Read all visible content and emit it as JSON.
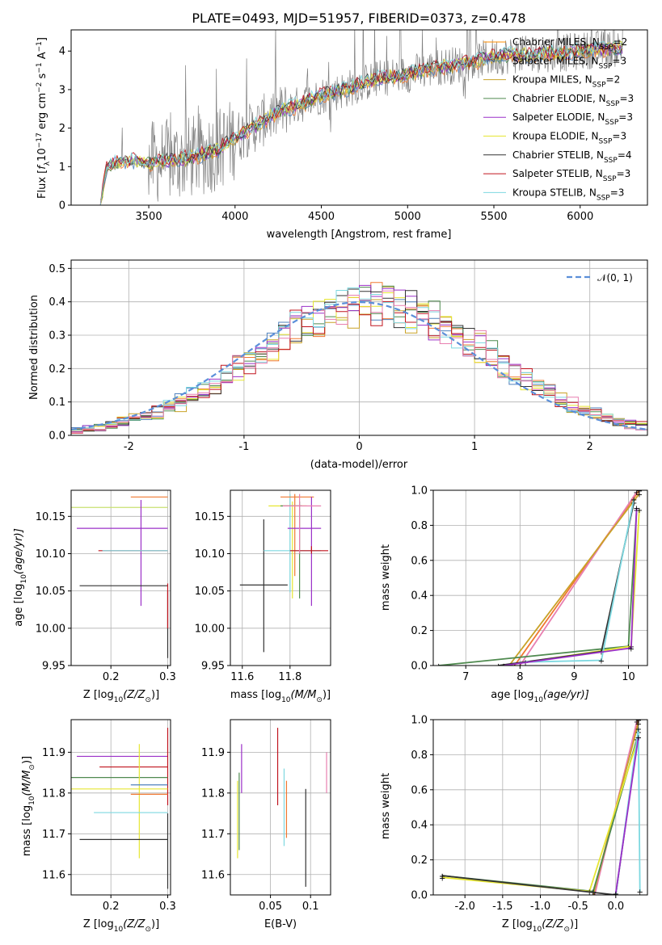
{
  "figure_title": "PLATE=0493, MJD=51957, FIBERID=0373, z=0.478",
  "models": [
    {
      "name": "Chabrier MILES, N",
      "sub": "SSP",
      "suffix": "=2",
      "color": "#ff8c00"
    },
    {
      "name": "Salpeter MILES, N",
      "sub": "SSP",
      "suffix": "=3",
      "color": "#4f81bd"
    },
    {
      "name": "Kroupa MILES, N",
      "sub": "SSP",
      "suffix": "=2",
      "color": "#c9a227"
    },
    {
      "name": "Chabrier ELODIE, N",
      "sub": "SSP",
      "suffix": "=3",
      "color": "#4f8a4f"
    },
    {
      "name": "Salpeter ELODIE, N",
      "sub": "SSP",
      "suffix": "=3",
      "color": "#9b30c8"
    },
    {
      "name": "Kroupa ELODIE, N",
      "sub": "SSP",
      "suffix": "=3",
      "color": "#e6e633"
    },
    {
      "name": "Chabrier STELIB, N",
      "sub": "SSP",
      "suffix": "=4",
      "color": "#333333"
    },
    {
      "name": "Salpeter STELIB, N",
      "sub": "SSP",
      "suffix": "=3",
      "color": "#c0141e"
    },
    {
      "name": "Kroupa STELIB, N",
      "sub": "SSP",
      "suffix": "=3",
      "color": "#7dd8e0"
    }
  ],
  "colors": {
    "data_spectrum": "#808080",
    "gauss": "#5b8fd9",
    "pink": "#e87fb0",
    "coral": "#f07830",
    "lime": "#c8e070"
  },
  "chart_data": [
    {
      "id": "spectrum",
      "type": "line",
      "title": "PLATE=0493, MJD=51957, FIBERID=0373, z=0.478",
      "xlabel": "wavelength [Angstrom, rest frame]",
      "ylabel_parts": [
        "Flux [",
        "f",
        "λ",
        "10",
        "−17",
        " erg cm",
        "−2",
        " s",
        "−1",
        " A",
        "−1",
        "]"
      ],
      "xlim": [
        3050,
        6390
      ],
      "ylim": [
        0,
        4.55
      ],
      "xticks": [
        3500,
        4000,
        4500,
        5000,
        5500,
        6000
      ],
      "yticks": [
        0,
        1,
        2,
        3,
        4
      ],
      "grid": false,
      "legend_position": "top-right",
      "continuum": {
        "x": [
          3220,
          3250,
          3300,
          3400,
          3500,
          3600,
          3700,
          3800,
          3900,
          4000,
          4100,
          4200,
          4300,
          4400,
          4500,
          4600,
          4700,
          4800,
          4900,
          5000,
          5100,
          5200,
          5300,
          5400,
          5500,
          5600,
          5700,
          5800,
          5900,
          6000,
          6100,
          6200,
          6250
        ],
        "y": [
          0.0,
          0.95,
          1.1,
          1.15,
          1.1,
          1.15,
          1.2,
          1.3,
          1.45,
          1.75,
          2.0,
          2.3,
          2.5,
          2.65,
          2.85,
          2.95,
          3.1,
          3.25,
          3.35,
          3.4,
          3.5,
          3.6,
          3.65,
          3.75,
          3.85,
          3.9,
          3.9,
          3.95,
          3.95,
          4.0,
          4.05,
          4.05,
          4.1
        ]
      }
    },
    {
      "id": "residuals",
      "type": "line",
      "xlabel": "(data-model)/error",
      "ylabel": "Normed distribution",
      "xlim": [
        -2.5,
        2.5
      ],
      "ylim": [
        0,
        0.525
      ],
      "xticks": [
        -2,
        -1,
        0,
        1,
        2
      ],
      "yticks": [
        0.0,
        0.1,
        0.2,
        0.3,
        0.4,
        0.5
      ],
      "grid": true,
      "legend_position": "top-right",
      "legend_label": "𝒩(0, 1)",
      "hist_bins": [
        -2.5,
        2.5,
        50
      ]
    },
    {
      "id": "age_vs_Z",
      "type": "scatter",
      "xlabel_parts": [
        "Z [log",
        "10",
        "(Z/Z",
        "⊙",
        ")]"
      ],
      "ylabel_parts": [
        "age  [log",
        "10",
        "(age/yr)]"
      ],
      "xlim": [
        0.13,
        0.305
      ],
      "ylim": [
        9.95,
        10.185
      ],
      "xticks": [
        0.2,
        0.3
      ],
      "yticks": [
        9.95,
        10.0,
        10.05,
        10.1,
        10.15
      ],
      "grid": true,
      "points": [
        {
          "x": 0.25,
          "y": 10.162,
          "xerr": [
            0.13,
            0.3
          ],
          "yerr": [
            10.162,
            10.162
          ],
          "color": "#c8e070"
        },
        {
          "x": 0.255,
          "y": 10.176,
          "xerr": [
            0.235,
            0.3
          ],
          "yerr": [
            10.176,
            10.176
          ],
          "color": "#f07830"
        },
        {
          "x": 0.253,
          "y": 10.134,
          "xerr": [
            0.14,
            0.3
          ],
          "yerr": [
            10.03,
            10.172
          ],
          "color": "#9b30c8"
        },
        {
          "x": 0.3,
          "y": 10.104,
          "xerr": [
            0.178,
            0.3
          ],
          "yerr": [
            10.104,
            10.104
          ],
          "color": "#c0141e"
        },
        {
          "x": 0.3,
          "y": 10.104,
          "xerr": [
            0.185,
            0.3
          ],
          "yerr": [
            10.104,
            10.104
          ],
          "color": "#7dd8e0"
        },
        {
          "x": 0.3,
          "y": 10.057,
          "xerr": [
            0.145,
            0.3
          ],
          "yerr": [
            9.96,
            10.05
          ],
          "color": "#333333"
        },
        {
          "x": 0.3,
          "y": 10.03,
          "xerr": [
            0.3,
            0.3
          ],
          "yerr": [
            10.0,
            10.06
          ],
          "color": "#c0141e"
        }
      ]
    },
    {
      "id": "age_vs_mass",
      "type": "scatter",
      "xlabel_parts": [
        "mass [log",
        "10",
        "(M/M",
        "⊙",
        ")]"
      ],
      "xlim": [
        11.55,
        11.97
      ],
      "ylim": [
        9.95,
        10.185
      ],
      "xticks": [
        11.6,
        11.8
      ],
      "yticks": [
        9.95,
        10.0,
        10.05,
        10.1,
        10.15
      ],
      "grid": true,
      "points": [
        {
          "x": 11.69,
          "y": 10.058,
          "xerr": [
            11.59,
            11.79
          ],
          "yerr": [
            9.968,
            10.146
          ],
          "color": "#333333"
        },
        {
          "x": 11.8,
          "y": 10.104,
          "xerr": [
            11.69,
            11.93
          ],
          "yerr": [
            10.048,
            10.18
          ],
          "color": "#7dd8e0"
        },
        {
          "x": 11.81,
          "y": 10.164,
          "xerr": [
            11.71,
            11.87
          ],
          "yerr": [
            10.04,
            10.17
          ],
          "color": "#e6e633"
        },
        {
          "x": 11.82,
          "y": 10.176,
          "xerr": [
            11.76,
            11.9
          ],
          "yerr": [
            10.07,
            10.18
          ],
          "color": "#f07830"
        },
        {
          "x": 11.84,
          "y": 10.164,
          "xerr": [
            11.76,
            11.85
          ],
          "yerr": [
            10.04,
            10.17
          ],
          "color": "#4f8a4f"
        },
        {
          "x": 11.89,
          "y": 10.134,
          "xerr": [
            11.79,
            11.93
          ],
          "yerr": [
            10.03,
            10.176
          ],
          "color": "#9b30c8"
        },
        {
          "x": 11.89,
          "y": 10.104,
          "xerr": [
            11.8,
            11.96
          ],
          "yerr": [
            10.1,
            10.11
          ],
          "color": "#c0141e"
        },
        {
          "x": 11.84,
          "y": 10.164,
          "xerr": [
            11.77,
            11.93
          ],
          "yerr": [
            10.1,
            10.18
          ],
          "color": "#e87fb0"
        }
      ]
    },
    {
      "id": "mass_weight_vs_age",
      "type": "line",
      "xlabel_parts": [
        "age  [log",
        "10",
        "(age/yr)]"
      ],
      "ylabel": "mass weight",
      "xlim": [
        6.4,
        10.35
      ],
      "ylim": [
        0.0,
        1.0
      ],
      "xticks": [
        7,
        8,
        9,
        10
      ],
      "yticks": [
        0.0,
        0.2,
        0.4,
        0.6,
        0.8,
        1.0
      ],
      "grid": true
    },
    {
      "id": "mass_vs_Z",
      "type": "scatter",
      "xlabel_parts": [
        "Z [log",
        "10",
        "(Z/Z",
        "⊙",
        ")]"
      ],
      "ylabel_parts": [
        "mass [log",
        "10",
        "(M/M",
        "⊙",
        ")]"
      ],
      "xlim": [
        0.13,
        0.305
      ],
      "ylim": [
        11.55,
        11.98
      ],
      "xticks": [
        0.2,
        0.3
      ],
      "yticks": [
        11.6,
        11.7,
        11.8,
        11.9
      ],
      "grid": true,
      "points": [
        {
          "x": 0.25,
          "y": 11.89,
          "xerr": [
            0.14,
            0.3
          ],
          "yerr": [
            11.89,
            11.89
          ],
          "color": "#9b30c8"
        },
        {
          "x": 0.3,
          "y": 11.864,
          "xerr": [
            0.18,
            0.3
          ],
          "yerr": [
            11.77,
            11.96
          ],
          "color": "#c0141e"
        },
        {
          "x": 0.25,
          "y": 11.838,
          "xerr": [
            0.13,
            0.3
          ],
          "yerr": [
            11.838,
            11.838
          ],
          "color": "#4f8a4f"
        },
        {
          "x": 0.25,
          "y": 11.81,
          "xerr": [
            0.13,
            0.3
          ],
          "yerr": [
            11.64,
            11.92
          ],
          "color": "#e6e633"
        },
        {
          "x": 0.25,
          "y": 11.82,
          "xerr": [
            0.235,
            0.3
          ],
          "yerr": [
            11.82,
            11.82
          ],
          "color": "#4f81bd"
        },
        {
          "x": 0.3,
          "y": 11.797,
          "xerr": [
            0.235,
            0.3
          ],
          "yerr": [
            11.797,
            11.797
          ],
          "color": "#f07830"
        },
        {
          "x": 0.3,
          "y": 11.752,
          "xerr": [
            0.17,
            0.3
          ],
          "yerr": [
            11.752,
            11.752
          ],
          "color": "#7dd8e0"
        },
        {
          "x": 0.3,
          "y": 11.686,
          "xerr": [
            0.145,
            0.3
          ],
          "yerr": [
            11.565,
            11.75
          ],
          "color": "#333333"
        }
      ]
    },
    {
      "id": "mass_vs_EBV",
      "type": "scatter",
      "xlabel": "E(B-V)",
      "xlim": [
        0.0,
        0.125
      ],
      "ylim": [
        11.55,
        11.98
      ],
      "xticks": [
        0.05,
        0.1
      ],
      "yticks": [
        11.6,
        11.7,
        11.8,
        11.9
      ],
      "grid": true,
      "points": [
        {
          "x": 0.009,
          "y": 11.77,
          "yerr": [
            11.64,
            11.83
          ],
          "color": "#e6e633"
        },
        {
          "x": 0.011,
          "y": 11.78,
          "yerr": [
            11.66,
            11.85
          ],
          "color": "#4f8a4f"
        },
        {
          "x": 0.014,
          "y": 11.86,
          "yerr": [
            11.8,
            11.92
          ],
          "color": "#9b30c8"
        },
        {
          "x": 0.059,
          "y": 11.86,
          "yerr": [
            11.77,
            11.96
          ],
          "color": "#c0141e"
        },
        {
          "x": 0.067,
          "y": 11.78,
          "yerr": [
            11.67,
            11.86
          ],
          "color": "#7dd8e0"
        },
        {
          "x": 0.07,
          "y": 11.75,
          "yerr": [
            11.69,
            11.83
          ],
          "color": "#f07830"
        },
        {
          "x": 0.094,
          "y": 11.7,
          "yerr": [
            11.57,
            11.81
          ],
          "color": "#333333"
        },
        {
          "x": 0.12,
          "y": 11.85,
          "yerr": [
            11.8,
            11.9
          ],
          "color": "#e87fb0"
        }
      ]
    },
    {
      "id": "mass_weight_vs_Z",
      "type": "line",
      "xlabel_parts": [
        "Z [log",
        "10",
        "(Z/Z",
        "⊙",
        ")]"
      ],
      "ylabel": "mass weight",
      "xlim": [
        -2.42,
        0.42
      ],
      "ylim": [
        0.0,
        1.0
      ],
      "xticks": [
        -2.0,
        -1.5,
        -1.0,
        -0.5,
        0.0
      ],
      "yticks": [
        0.0,
        0.2,
        0.4,
        0.6,
        0.8,
        1.0
      ],
      "grid": true
    }
  ]
}
